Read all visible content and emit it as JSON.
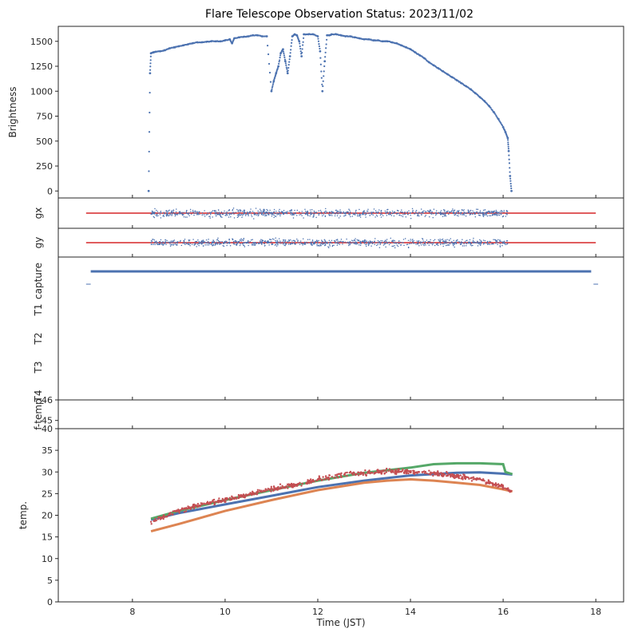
{
  "chart_data": {
    "type": "scatter",
    "title": "Flare Telescope Observation Status: 2023/11/02",
    "xlabel": "Time (JST)",
    "xlim": [
      6.4,
      18.6
    ],
    "xticks": [
      8,
      10,
      12,
      14,
      16,
      18
    ],
    "colors": {
      "blue": "#4c72b0",
      "orange": "#dd8452",
      "green": "#55a868",
      "red": "#c44e52"
    },
    "panels": [
      {
        "id": "brightness",
        "ylabel": "Brightness",
        "ylim": [
          -70,
          1650
        ],
        "yticks": [
          0,
          250,
          500,
          750,
          1000,
          1250,
          1500
        ],
        "series": [
          {
            "color": "#4c72b0",
            "style": "points",
            "x": [
              8.35,
              8.38,
              8.4,
              8.45,
              8.5,
              8.6,
              8.7,
              8.8,
              8.9,
              9.0,
              9.1,
              9.2,
              9.3,
              9.4,
              9.5,
              9.6,
              9.7,
              9.8,
              9.9,
              10.0,
              10.1,
              10.15,
              10.2,
              10.3,
              10.4,
              10.5,
              10.6,
              10.7,
              10.8,
              10.9,
              11.0,
              11.05,
              11.1,
              11.15,
              11.2,
              11.25,
              11.3,
              11.35,
              11.4,
              11.45,
              11.5,
              11.55,
              11.6,
              11.65,
              11.7,
              11.8,
              11.9,
              12.0,
              12.05,
              12.1,
              12.15,
              12.2,
              12.25,
              12.3,
              12.4,
              12.5,
              12.6,
              12.7,
              12.8,
              12.9,
              13.0,
              13.1,
              13.2,
              13.3,
              13.4,
              13.5,
              13.6,
              13.7,
              13.8,
              13.9,
              14.0,
              14.1,
              14.2,
              14.3,
              14.4,
              14.5,
              14.6,
              14.7,
              14.8,
              14.9,
              15.0,
              15.1,
              15.2,
              15.3,
              15.4,
              15.5,
              15.6,
              15.7,
              15.8,
              15.9,
              16.0,
              16.05,
              16.1,
              16.12,
              16.15,
              16.18
            ],
            "y": [
              0,
              1180,
              1380,
              1390,
              1395,
              1400,
              1410,
              1430,
              1440,
              1450,
              1460,
              1470,
              1480,
              1490,
              1490,
              1495,
              1500,
              1500,
              1500,
              1510,
              1520,
              1480,
              1530,
              1540,
              1545,
              1550,
              1560,
              1560,
              1550,
              1550,
              1000,
              1100,
              1180,
              1250,
              1380,
              1420,
              1300,
              1180,
              1350,
              1550,
              1570,
              1560,
              1500,
              1350,
              1570,
              1570,
              1570,
              1550,
              1400,
              1000,
              1300,
              1560,
              1560,
              1570,
              1570,
              1560,
              1550,
              1550,
              1540,
              1530,
              1520,
              1520,
              1510,
              1510,
              1500,
              1500,
              1490,
              1480,
              1460,
              1440,
              1420,
              1390,
              1360,
              1330,
              1290,
              1260,
              1230,
              1200,
              1170,
              1140,
              1110,
              1080,
              1050,
              1020,
              980,
              940,
              900,
              850,
              790,
              720,
              640,
              590,
              530,
              400,
              150,
              0
            ]
          }
        ]
      },
      {
        "id": "gx",
        "ylabel": "gx",
        "reference_line": {
          "color": "#d62728",
          "x": [
            7.0,
            18.0
          ]
        },
        "series": [
          {
            "color": "#4c72b0",
            "style": "noise",
            "x_range": [
              8.4,
              16.1
            ]
          }
        ]
      },
      {
        "id": "gy",
        "ylabel": "gy",
        "reference_line": {
          "color": "#d62728",
          "x": [
            7.0,
            18.0
          ]
        },
        "series": [
          {
            "color": "#4c72b0",
            "style": "noise",
            "x_range": [
              8.4,
              16.1
            ]
          }
        ]
      },
      {
        "id": "status",
        "ylabels": [
          "capture",
          "T1",
          "T2",
          "T3",
          "T4"
        ],
        "bars": [
          {
            "row": "capture",
            "color": "#4c72b0",
            "x": [
              7.1,
              17.9
            ]
          }
        ]
      },
      {
        "id": "ftemp",
        "ylabel": "f-temp",
        "ylim": [
          44.6,
          46
        ],
        "yticks": [
          45,
          46
        ]
      },
      {
        "id": "temp",
        "ylabel": "temp.",
        "ylim": [
          0,
          40
        ],
        "yticks": [
          0,
          5,
          10,
          15,
          20,
          25,
          30,
          35,
          40
        ],
        "series": [
          {
            "color": "#4c72b0",
            "x": [
              8.4,
              9.0,
              10.0,
              11.0,
              12.0,
              13.0,
              14.0,
              15.0,
              15.5,
              16.0,
              16.2
            ],
            "y": [
              19.0,
              20.5,
              22.5,
              24.5,
              26.5,
              28.0,
              29.2,
              29.8,
              29.9,
              29.6,
              29.4
            ]
          },
          {
            "color": "#dd8452",
            "x": [
              8.4,
              9.0,
              10.0,
              11.0,
              12.0,
              13.0,
              13.5,
              14.0,
              14.5,
              15.0,
              15.5,
              16.0,
              16.2
            ],
            "y": [
              16.3,
              18.0,
              21.0,
              23.5,
              25.8,
              27.5,
              28.0,
              28.3,
              28.0,
              27.5,
              27.0,
              26.0,
              25.5
            ]
          },
          {
            "color": "#55a868",
            "x": [
              8.4,
              9.0,
              10.0,
              11.0,
              12.0,
              13.0,
              14.0,
              14.5,
              15.0,
              15.5,
              16.0,
              16.05,
              16.2
            ],
            "y": [
              19.2,
              21.0,
              23.5,
              25.8,
              28.0,
              29.8,
              31.0,
              31.8,
              32.0,
              32.0,
              31.8,
              30.0,
              29.5
            ]
          },
          {
            "color": "#c44e52",
            "style": "jitter",
            "x": [
              8.4,
              9.0,
              9.5,
              10.0,
              10.5,
              11.0,
              11.5,
              12.0,
              12.5,
              13.0,
              13.5,
              14.0,
              14.5,
              15.0,
              15.5,
              16.0,
              16.2
            ],
            "y": [
              18.5,
              21.0,
              22.5,
              23.5,
              24.8,
              26.0,
              27.0,
              28.3,
              29.3,
              29.8,
              30.2,
              30.0,
              29.7,
              29.0,
              28.3,
              26.5,
              25.5
            ]
          }
        ]
      }
    ]
  }
}
